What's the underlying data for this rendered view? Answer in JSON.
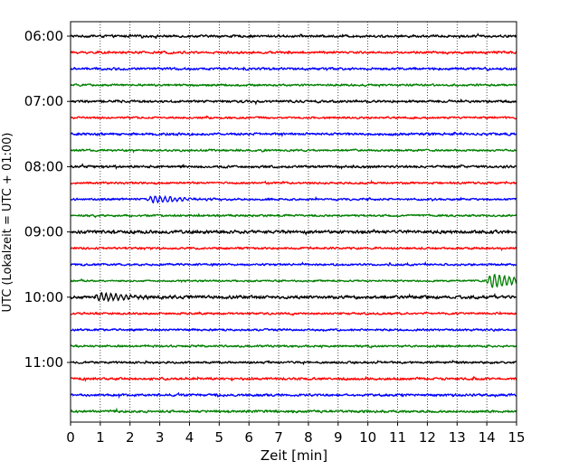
{
  "chart_data": {
    "type": "line",
    "title": "",
    "xlabel": "Zeit  [min]",
    "ylabel": "UTC (Lokalzeit = UTC + 01:00)",
    "xlim": [
      0,
      15
    ],
    "x_ticks": [
      0,
      1,
      2,
      3,
      4,
      5,
      6,
      7,
      8,
      9,
      10,
      11,
      12,
      13,
      14,
      15
    ],
    "y_tick_labels": [
      "06:00",
      "07:00",
      "08:00",
      "09:00",
      "10:00",
      "11:00"
    ],
    "y_tick_trace_index": [
      0,
      4,
      8,
      12,
      16,
      20
    ],
    "grid": "vertical dotted",
    "trace_colors": [
      "#000000",
      "#ff0000",
      "#0000ff",
      "#008000"
    ],
    "series": [
      {
        "start": "06:00",
        "color": "#000000",
        "amplitude": 0.35
      },
      {
        "start": "06:15",
        "color": "#ff0000",
        "amplitude": 0.35
      },
      {
        "start": "06:30",
        "color": "#0000ff",
        "amplitude": 0.35
      },
      {
        "start": "06:45",
        "color": "#008000",
        "amplitude": 0.3
      },
      {
        "start": "07:00",
        "color": "#000000",
        "amplitude": 0.35
      },
      {
        "start": "07:15",
        "color": "#ff0000",
        "amplitude": 0.3
      },
      {
        "start": "07:30",
        "color": "#0000ff",
        "amplitude": 0.35
      },
      {
        "start": "07:45",
        "color": "#008000",
        "amplitude": 0.3
      },
      {
        "start": "08:00",
        "color": "#000000",
        "amplitude": 0.35
      },
      {
        "start": "08:15",
        "color": "#ff0000",
        "amplitude": 0.3
      },
      {
        "start": "08:30",
        "color": "#0000ff",
        "amplitude": 0.3,
        "event": {
          "at_min": 2.8,
          "amplitude": 0.8
        }
      },
      {
        "start": "08:45",
        "color": "#008000",
        "amplitude": 0.3
      },
      {
        "start": "09:00",
        "color": "#000000",
        "amplitude": 0.45
      },
      {
        "start": "09:15",
        "color": "#ff0000",
        "amplitude": 0.3
      },
      {
        "start": "09:30",
        "color": "#0000ff",
        "amplitude": 0.3
      },
      {
        "start": "09:45",
        "color": "#008000",
        "amplitude": 0.25,
        "event": {
          "at_min": 14.2,
          "amplitude": 1.6
        }
      },
      {
        "start": "10:00",
        "color": "#000000",
        "amplitude": 0.45,
        "event": {
          "at_min": 1.0,
          "amplitude": 1.0
        }
      },
      {
        "start": "10:15",
        "color": "#ff0000",
        "amplitude": 0.3
      },
      {
        "start": "10:30",
        "color": "#0000ff",
        "amplitude": 0.3
      },
      {
        "start": "10:45",
        "color": "#008000",
        "amplitude": 0.3
      },
      {
        "start": "11:00",
        "color": "#000000",
        "amplitude": 0.3
      },
      {
        "start": "11:15",
        "color": "#ff0000",
        "amplitude": 0.35
      },
      {
        "start": "11:30",
        "color": "#0000ff",
        "amplitude": 0.35
      },
      {
        "start": "11:45",
        "color": "#008000",
        "amplitude": 0.35
      }
    ]
  }
}
